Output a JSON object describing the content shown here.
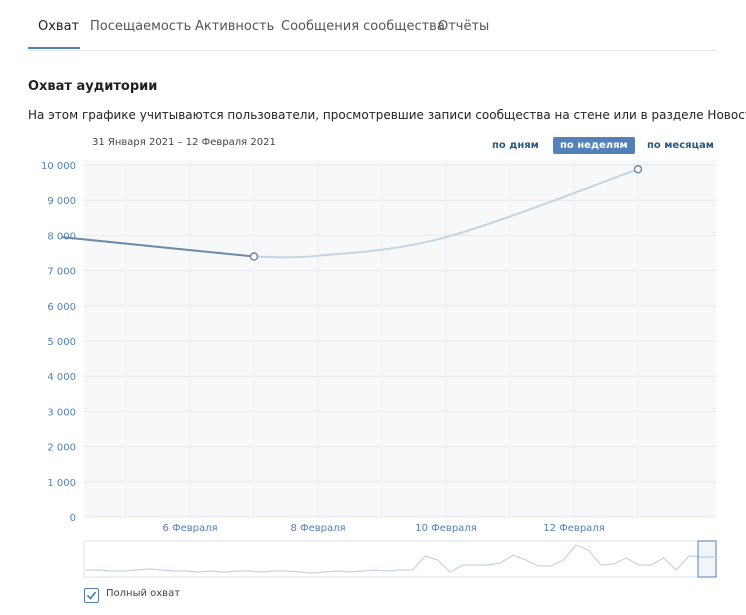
{
  "tabs": [
    {
      "label": "Охват"
    },
    {
      "label": "Посещаемость"
    },
    {
      "label": "Активность"
    },
    {
      "label": "Сообщения сообщества"
    },
    {
      "label": "Отчёты"
    }
  ],
  "section": {
    "title": "Охват аудитории",
    "description": "На этом графике учитываются пользователи, просмотревшие записи сообщества на стене или в разделе Новости."
  },
  "date_range": "31 Января 2021 – 12 Февраля 2021",
  "period_buttons": [
    {
      "label": "по дням"
    },
    {
      "label": "по неделям"
    },
    {
      "label": "по месяцам"
    }
  ],
  "selected_period": "по неделям",
  "legend": {
    "label": "Полный охват",
    "checked": true
  },
  "colors": {
    "accent": "#5181b8",
    "line": "#6b8aa8",
    "line_projection": "#c6d4e2"
  },
  "chart_data": {
    "type": "line",
    "title": "",
    "xlabel": "",
    "ylabel": "",
    "ylim": [
      0,
      10000
    ],
    "y_ticks": [
      "0",
      "1 000",
      "2 000",
      "3 000",
      "4 000",
      "5 000",
      "6 000",
      "7 000",
      "8 000",
      "9 000",
      "10 000"
    ],
    "x_ticks": [
      "6 Февраля",
      "8 Февраля",
      "10 Февраля",
      "12 Февраля"
    ],
    "grid": true,
    "series": [
      {
        "points": [
          {
            "x": "2021-02-04",
            "y": 7950
          },
          {
            "x": "2021-02-07",
            "y": 7400
          },
          {
            "x": "2021-02-08",
            "y": 7420
          },
          {
            "x": "2021-02-10",
            "y": 7950
          },
          {
            "x": "2021-02-13",
            "y": 9880
          }
        ]
      }
    ]
  }
}
